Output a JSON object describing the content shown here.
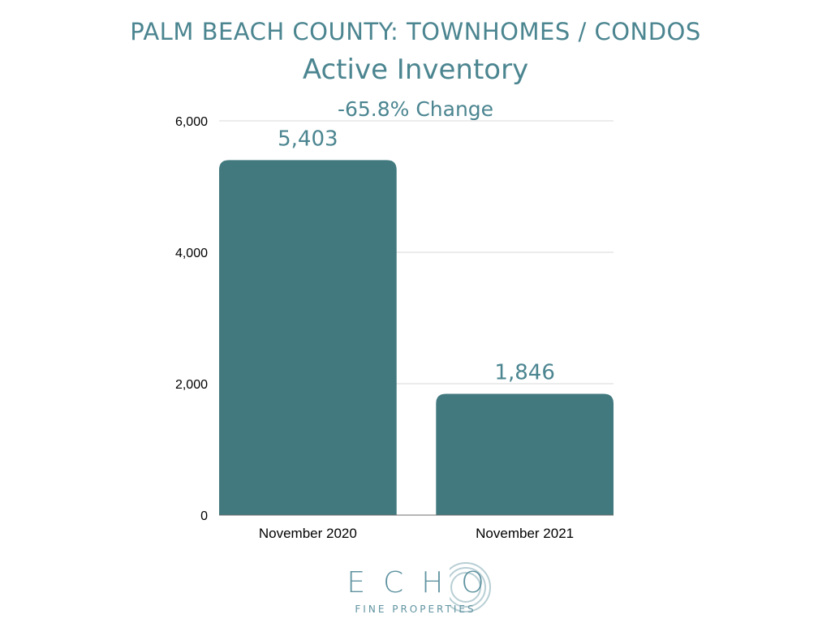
{
  "header": {
    "title": "PALM BEACH COUNTY: TOWNHOMES / CONDOS",
    "subtitle": "Active Inventory",
    "change": "-65.8% Change"
  },
  "colors": {
    "accent": "#41797f",
    "title_text": "#4b8590",
    "axis_text": "#000000",
    "grid": "#d9d9d9",
    "logo_text": "#5f93a0",
    "logo_rings": "#b8cfd4"
  },
  "chart_data": {
    "type": "bar",
    "categories": [
      "November 2020",
      "November 2021"
    ],
    "values": [
      5403,
      1846
    ],
    "data_labels": [
      "5,403",
      "1,846"
    ],
    "y_ticks": [
      0,
      2000,
      4000,
      6000
    ],
    "y_tick_labels": [
      "0",
      "2,000",
      "4,000",
      "6,000"
    ],
    "ylim": [
      0,
      6000
    ],
    "grid": true,
    "legend": "none",
    "title": "Active Inventory",
    "xlabel": "",
    "ylabel": ""
  },
  "logo": {
    "wordmark": "ECHO",
    "tagline": "FINE PROPERTIES"
  }
}
